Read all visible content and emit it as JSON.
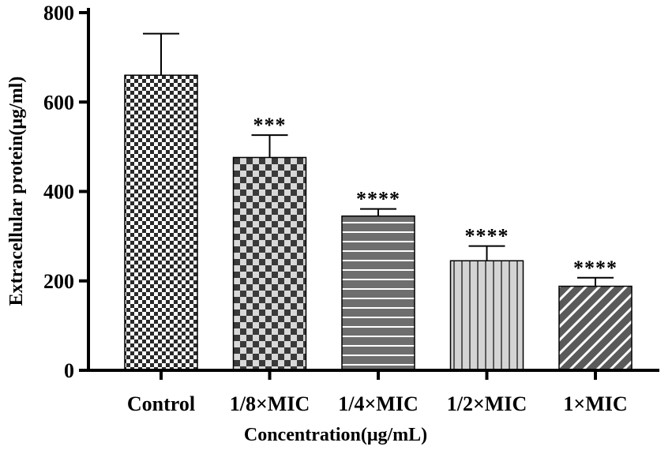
{
  "chart_data": {
    "type": "bar",
    "categories": [
      "Control",
      "1/8×MIC",
      "1/4×MIC",
      "1/2×MIC",
      "1×MIC"
    ],
    "values": [
      660,
      476,
      345,
      245,
      188
    ],
    "errors": [
      93,
      50,
      16,
      33,
      19
    ],
    "significance": [
      "",
      "***",
      "****",
      "****",
      "****"
    ],
    "patterns": [
      "fine-checker",
      "coarse-checker",
      "horizontal-stripes",
      "vertical-stripes",
      "diagonal-stripes"
    ],
    "xlabel": "Concentration(μg/mL)",
    "ylabel": "Extracellular protein(μg/ml)",
    "ylim": [
      0,
      800
    ],
    "yticks": [
      "0",
      "200",
      "400",
      "600",
      "800"
    ],
    "grid": false,
    "colors": {
      "axis": "#000000",
      "dark": "#404040",
      "mid": "#6e6e6e",
      "light": "#cfcfcf",
      "white": "#ffffff"
    }
  }
}
